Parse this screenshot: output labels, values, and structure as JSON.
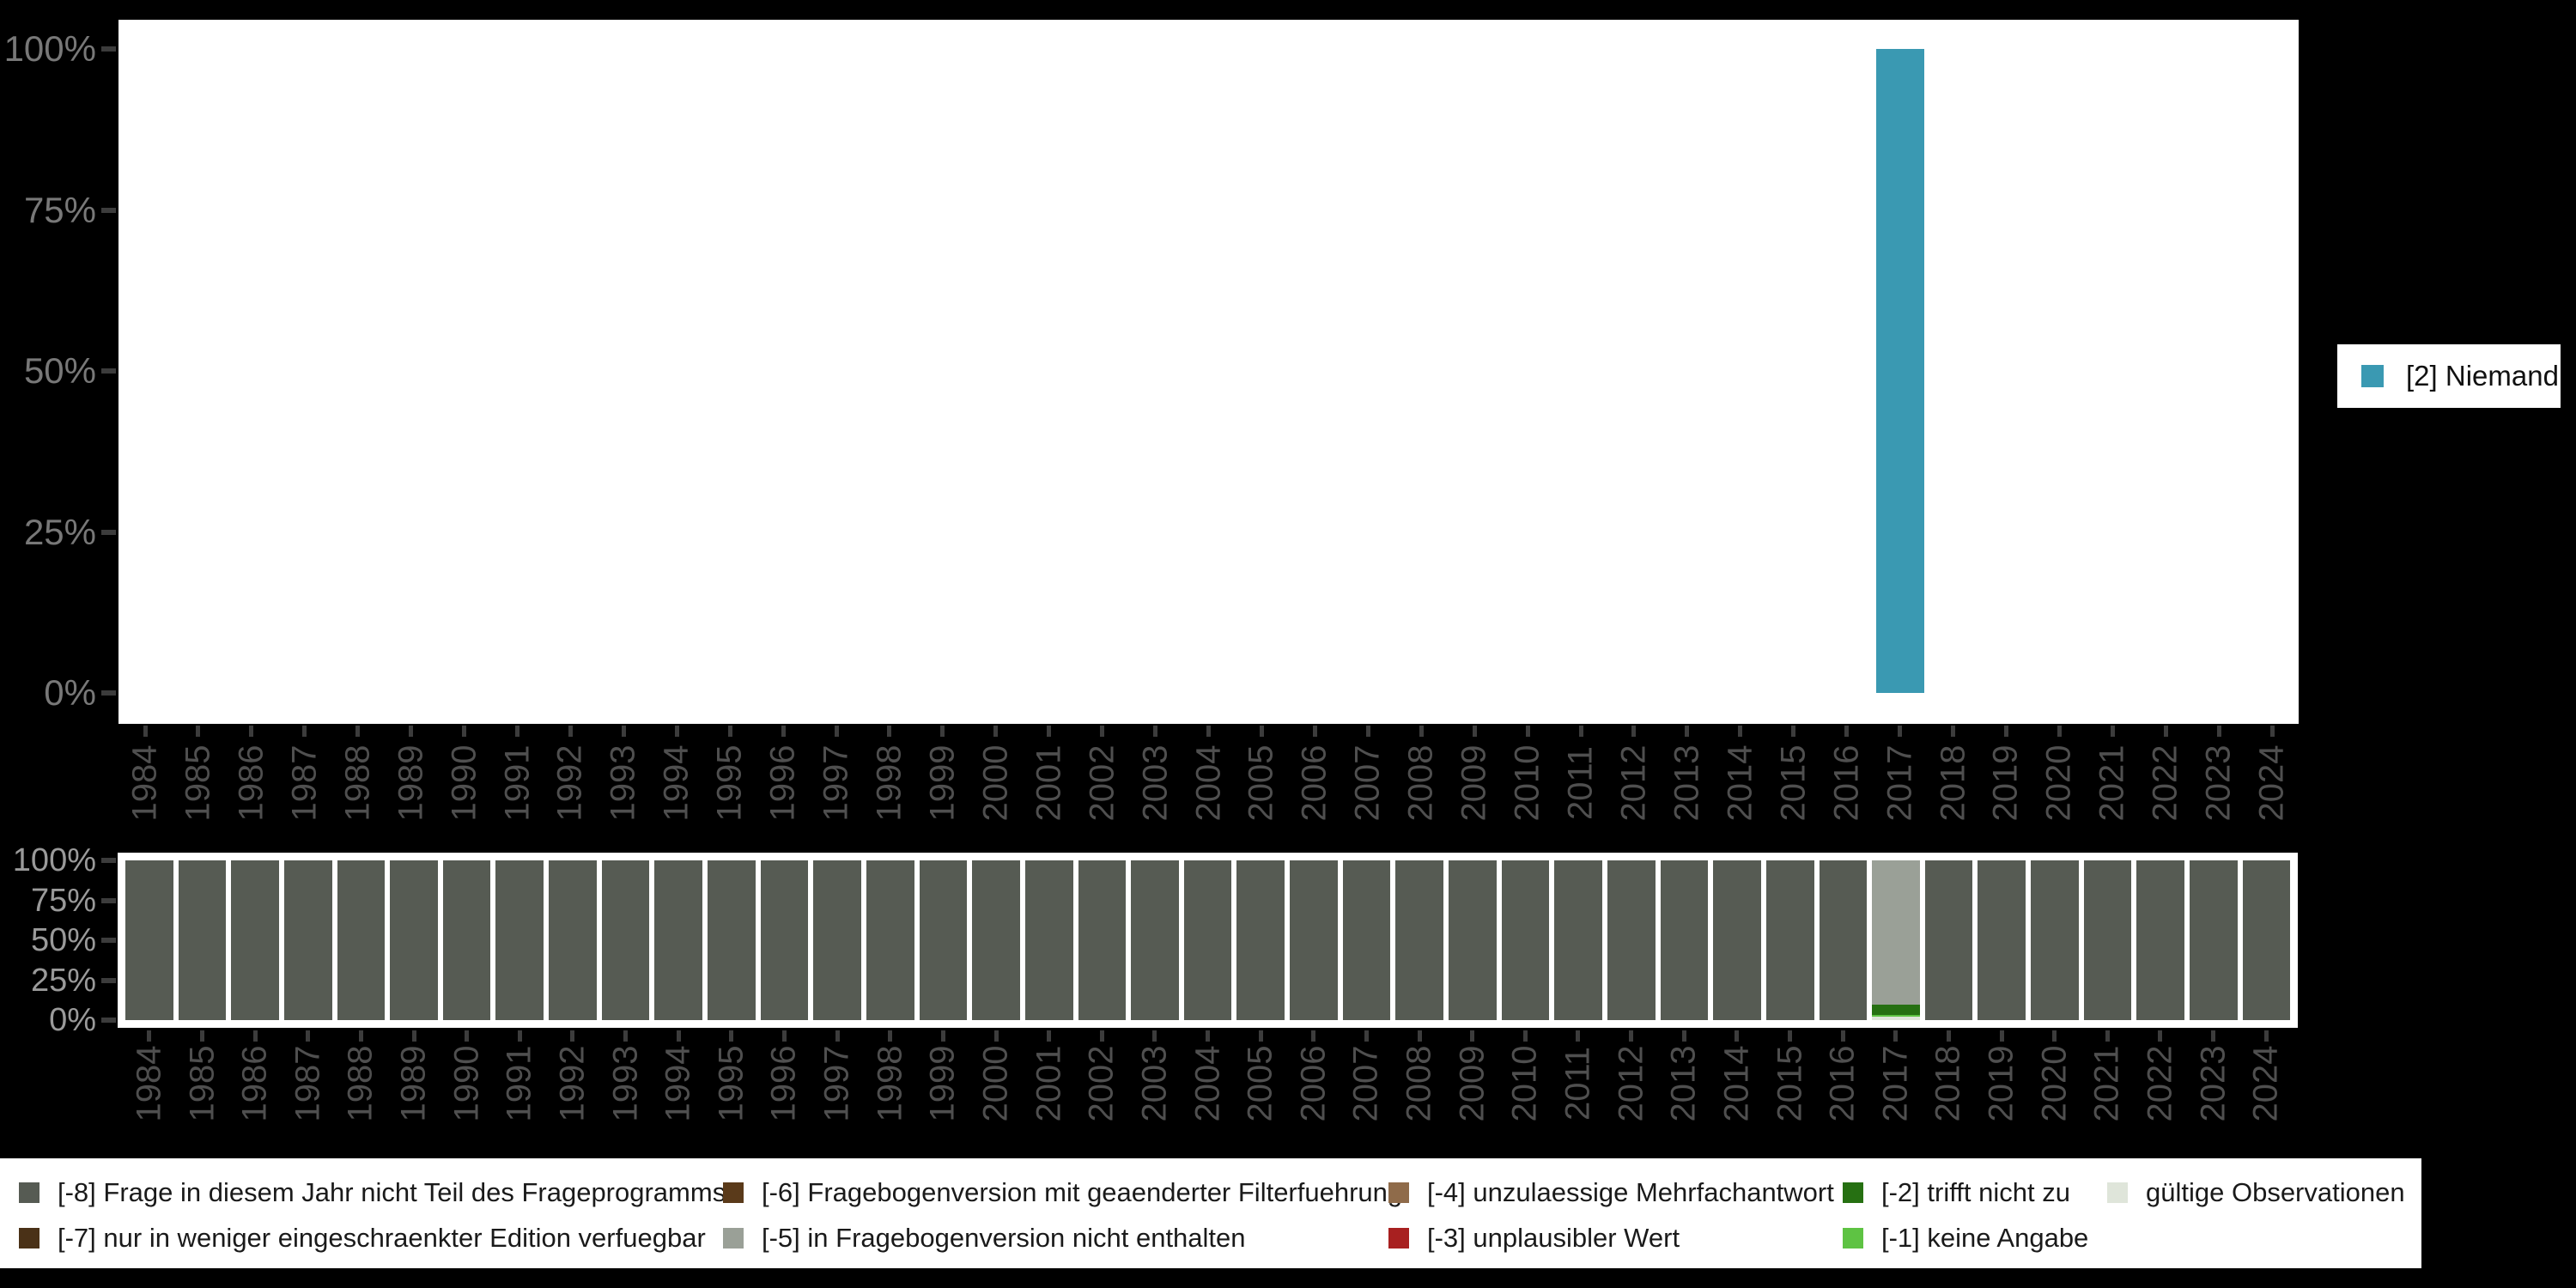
{
  "background_color": "#000000",
  "chart_data": [
    {
      "type": "bar",
      "title": "",
      "x": [
        "1984",
        "1985",
        "1986",
        "1987",
        "1988",
        "1989",
        "1990",
        "1991",
        "1992",
        "1993",
        "1994",
        "1995",
        "1996",
        "1997",
        "1998",
        "1999",
        "2000",
        "2001",
        "2002",
        "2003",
        "2004",
        "2005",
        "2006",
        "2007",
        "2008",
        "2009",
        "2010",
        "2011",
        "2012",
        "2013",
        "2014",
        "2015",
        "2016",
        "2017",
        "2018",
        "2019",
        "2020",
        "2021",
        "2022",
        "2023",
        "2024"
      ],
      "ylim": [
        0,
        100
      ],
      "ytick_labels": [
        "100%",
        "75%",
        "50%",
        "25%",
        "0%"
      ],
      "ytick_values": [
        100,
        75,
        50,
        25,
        0
      ],
      "grid": false,
      "plot_background": "#ffffff",
      "series": [
        {
          "name": "[2] Niemand",
          "color": "#3a99b2",
          "points": [
            {
              "year": "2017",
              "value": 100
            }
          ]
        }
      ],
      "legend": {
        "position": "right",
        "label": "[2] Niemand",
        "swatch_color": "#3a99b2"
      }
    },
    {
      "type": "stacked-bar",
      "title": "",
      "x": [
        "1984",
        "1985",
        "1986",
        "1987",
        "1988",
        "1989",
        "1990",
        "1991",
        "1992",
        "1993",
        "1994",
        "1995",
        "1996",
        "1997",
        "1998",
        "1999",
        "2000",
        "2001",
        "2002",
        "2003",
        "2004",
        "2005",
        "2006",
        "2007",
        "2008",
        "2009",
        "2010",
        "2011",
        "2012",
        "2013",
        "2014",
        "2015",
        "2016",
        "2017",
        "2018",
        "2019",
        "2020",
        "2021",
        "2022",
        "2023",
        "2024"
      ],
      "ylim": [
        0,
        100
      ],
      "ytick_labels": [
        "100%",
        "75%",
        "50%",
        "25%",
        "0%"
      ],
      "ytick_values": [
        100,
        75,
        50,
        25,
        0
      ],
      "default_stack": [
        {
          "label": "[-8] Frage in diesem Jahr nicht Teil des Frageprogramms",
          "color": "#565b53",
          "value": 100
        }
      ],
      "year_stacks": {
        "2017": [
          {
            "label": "gültige Observationen",
            "color": "#dfe5da",
            "value": 2
          },
          {
            "label": "[-1] keine Angabe",
            "color": "#5ec343",
            "value": 1
          },
          {
            "label": "[-2] trifft nicht zu",
            "color": "#267012",
            "value": 6.5
          },
          {
            "label": "[-5] in Fragebogenversion nicht enthalten",
            "color": "#9aa097",
            "value": 90.5
          }
        ]
      }
    }
  ],
  "missing_legend": {
    "entries": [
      {
        "col": 0,
        "row": 0,
        "label": "[-8] Frage in diesem Jahr nicht Teil des Frageprogramms",
        "color": "#565b53"
      },
      {
        "col": 0,
        "row": 1,
        "label": "[-7] nur in weniger eingeschraenkter Edition verfuegbar",
        "color": "#4a3117"
      },
      {
        "col": 1,
        "row": 0,
        "label": "[-6] Fragebogenversion mit geaenderter Filterfuehrung",
        "color": "#5a3a1a"
      },
      {
        "col": 1,
        "row": 1,
        "label": "[-5] in Fragebogenversion nicht enthalten",
        "color": "#9aa097"
      },
      {
        "col": 2,
        "row": 0,
        "label": "[-4] unzulaessige Mehrfachantwort",
        "color": "#8f6b4a"
      },
      {
        "col": 2,
        "row": 1,
        "label": "[-3] unplausibler Wert",
        "color": "#a82020"
      },
      {
        "col": 3,
        "row": 0,
        "label": "[-2] trifft nicht zu",
        "color": "#267012"
      },
      {
        "col": 3,
        "row": 1,
        "label": "[-1] keine Angabe",
        "color": "#5ec343"
      },
      {
        "col": 4,
        "row": 0,
        "label": "gültige Observationen",
        "color": "#dfe5da"
      }
    ]
  }
}
